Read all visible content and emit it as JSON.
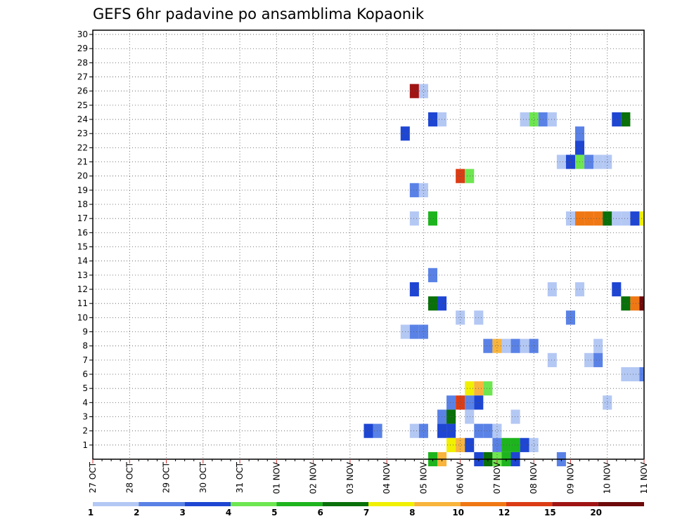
{
  "chart_data": {
    "type": "heatmap",
    "title": "GEFS 6hr padavine po ansamblima Kopaonik",
    "xlabel": "",
    "ylabel": "",
    "x_tick_labels": [
      "27 OCT",
      "28 OCT",
      "29 OCT",
      "30 OCT",
      "31 OCT",
      "01 NOV",
      "02 NOV",
      "03 NOV",
      "04 NOV",
      "05 NOV",
      "06 NOV",
      "07 NOV",
      "08 NOV",
      "09 NOV",
      "10 NOV",
      "11 NOV"
    ],
    "x_step_hours": 6,
    "xlim": [
      0,
      60
    ],
    "y_tick_labels": [
      "1",
      "2",
      "3",
      "4",
      "5",
      "6",
      "7",
      "8",
      "9",
      "10",
      "11",
      "12",
      "13",
      "14",
      "15",
      "16",
      "17",
      "18",
      "19",
      "20",
      "21",
      "22",
      "23",
      "24",
      "25",
      "26",
      "27",
      "28",
      "29",
      "30"
    ],
    "ylim": [
      0,
      30
    ],
    "grid": true,
    "legend": {
      "position": "bottom",
      "colors": [
        "#b4c8f4",
        "#5a82e6",
        "#1e46d2",
        "#6ee650",
        "#1eb41e",
        "#0a700a",
        "#f0f000",
        "#f8b43c",
        "#f07814",
        "#dc3c14",
        "#a01414",
        "#6e0a0a"
      ],
      "tick_labels": [
        "1",
        "2",
        "3",
        "4",
        "5",
        "6",
        "7",
        "8",
        "10",
        "12",
        "15",
        "20"
      ]
    },
    "cells_note": "[x_step_index, member, class_index]; member 0 = unlabeled bottom row",
    "cells": [
      [
        35,
        26,
        10
      ],
      [
        36,
        26,
        0
      ],
      [
        37,
        24,
        2
      ],
      [
        38,
        24,
        0
      ],
      [
        47,
        24,
        0
      ],
      [
        48,
        24,
        3
      ],
      [
        49,
        24,
        1
      ],
      [
        50,
        24,
        0
      ],
      [
        57,
        24,
        2
      ],
      [
        58,
        24,
        5
      ],
      [
        34,
        23,
        2
      ],
      [
        53,
        23,
        1
      ],
      [
        53,
        22,
        2
      ],
      [
        51,
        21,
        0
      ],
      [
        52,
        21,
        2
      ],
      [
        53,
        21,
        3
      ],
      [
        54,
        21,
        1
      ],
      [
        55,
        21,
        0
      ],
      [
        56,
        21,
        0
      ],
      [
        40,
        20,
        9
      ],
      [
        41,
        20,
        3
      ],
      [
        35,
        19,
        1
      ],
      [
        36,
        19,
        0
      ],
      [
        35,
        17,
        0
      ],
      [
        37,
        17,
        4
      ],
      [
        52,
        17,
        0
      ],
      [
        53,
        17,
        8
      ],
      [
        54,
        17,
        8
      ],
      [
        55,
        17,
        8
      ],
      [
        56,
        17,
        5
      ],
      [
        57,
        17,
        0
      ],
      [
        58,
        17,
        0
      ],
      [
        59,
        17,
        2
      ],
      [
        60,
        17,
        6
      ],
      [
        37,
        13,
        1
      ],
      [
        35,
        12,
        2
      ],
      [
        50,
        12,
        0
      ],
      [
        53,
        12,
        0
      ],
      [
        57,
        12,
        2
      ],
      [
        37,
        11,
        5
      ],
      [
        38,
        11,
        2
      ],
      [
        58,
        11,
        5
      ],
      [
        59,
        11,
        8
      ],
      [
        60,
        11,
        11
      ],
      [
        40,
        10,
        0
      ],
      [
        42,
        10,
        0
      ],
      [
        52,
        10,
        1
      ],
      [
        34,
        9,
        0
      ],
      [
        35,
        9,
        1
      ],
      [
        36,
        9,
        1
      ],
      [
        43,
        8,
        1
      ],
      [
        44,
        8,
        7
      ],
      [
        45,
        8,
        0
      ],
      [
        46,
        8,
        1
      ],
      [
        47,
        8,
        0
      ],
      [
        48,
        8,
        1
      ],
      [
        55,
        8,
        0
      ],
      [
        50,
        7,
        0
      ],
      [
        54,
        7,
        0
      ],
      [
        55,
        7,
        1
      ],
      [
        58,
        6,
        0
      ],
      [
        59,
        6,
        0
      ],
      [
        60,
        6,
        1
      ],
      [
        41,
        5,
        6
      ],
      [
        42,
        5,
        7
      ],
      [
        43,
        5,
        3
      ],
      [
        39,
        4,
        1
      ],
      [
        40,
        4,
        9
      ],
      [
        41,
        4,
        1
      ],
      [
        42,
        4,
        2
      ],
      [
        56,
        4,
        0
      ],
      [
        38,
        3,
        1
      ],
      [
        39,
        3,
        5
      ],
      [
        41,
        3,
        0
      ],
      [
        46,
        3,
        0
      ],
      [
        30,
        2,
        2
      ],
      [
        31,
        2,
        1
      ],
      [
        35,
        2,
        0
      ],
      [
        36,
        2,
        1
      ],
      [
        38,
        2,
        2
      ],
      [
        39,
        2,
        2
      ],
      [
        42,
        2,
        1
      ],
      [
        43,
        2,
        1
      ],
      [
        44,
        2,
        0
      ],
      [
        39,
        1,
        6
      ],
      [
        40,
        1,
        7
      ],
      [
        41,
        1,
        2
      ],
      [
        44,
        1,
        1
      ],
      [
        45,
        1,
        4
      ],
      [
        46,
        1,
        4
      ],
      [
        47,
        1,
        2
      ],
      [
        48,
        1,
        0
      ],
      [
        37,
        0,
        4
      ],
      [
        38,
        0,
        7
      ],
      [
        42,
        0,
        2
      ],
      [
        43,
        0,
        5
      ],
      [
        44,
        0,
        3
      ],
      [
        45,
        0,
        4
      ],
      [
        46,
        0,
        2
      ],
      [
        51,
        0,
        1
      ]
    ]
  }
}
